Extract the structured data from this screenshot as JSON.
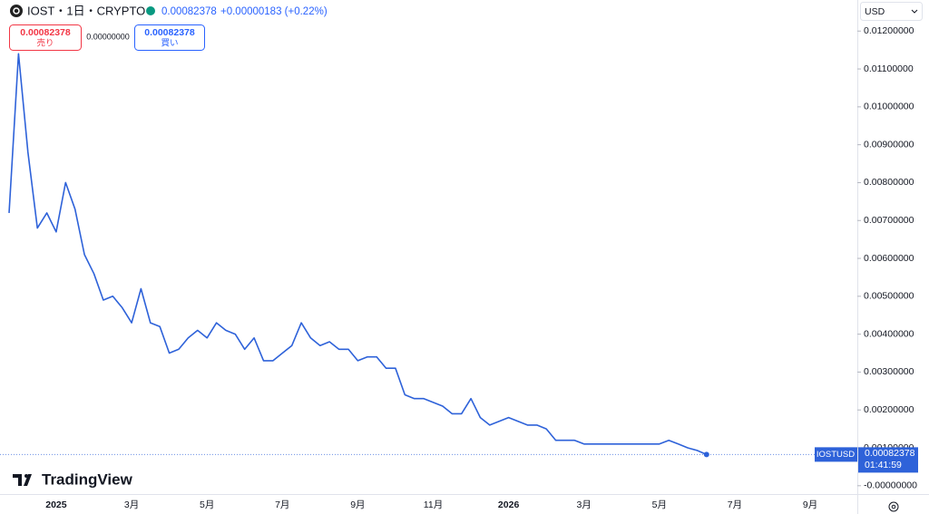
{
  "chart_data": {
    "type": "line",
    "symbol": "IOST・1日・CRYPTO",
    "last": "0.00082378",
    "change": "+0.00000183 (+0.22%)",
    "sell": {
      "price": "0.00082378",
      "label": "売り"
    },
    "spread": "0.00000000",
    "buy": {
      "price": "0.00082378",
      "label": "買い"
    },
    "currency": "USD",
    "brand": "TradingView",
    "price_tag": {
      "ticker": "IOSTUSD",
      "price": "0.00082378",
      "countdown": "01:41:59"
    },
    "categories": [
      null,
      null,
      null,
      null,
      null,
      "2025",
      null,
      null,
      null,
      null,
      null,
      null,
      null,
      "3月",
      null,
      null,
      null,
      null,
      null,
      null,
      null,
      "5月",
      null,
      null,
      null,
      null,
      null,
      null,
      null,
      "7月",
      null,
      null,
      null,
      null,
      null,
      null,
      null,
      "9月",
      null,
      null,
      null,
      null,
      null,
      null,
      null,
      "11月",
      null,
      null,
      null,
      null,
      null,
      null,
      null,
      "2026",
      null,
      null,
      null,
      null,
      null,
      null,
      null,
      "3月",
      null,
      null,
      null,
      null,
      null,
      null,
      null,
      "5月",
      null,
      null,
      null,
      null,
      null,
      null,
      null,
      "7月",
      null,
      null,
      null,
      null,
      null,
      null,
      null,
      "9月",
      null,
      null,
      null,
      null,
      null
    ],
    "series": [
      {
        "name": "IOSTUSD",
        "color": "#2e62d9",
        "values": [
          0.0072,
          0.0114,
          0.0088,
          0.0068,
          0.0072,
          0.0067,
          0.008,
          0.0073,
          0.0061,
          0.0056,
          0.0049,
          0.005,
          0.0047,
          0.0043,
          0.0052,
          0.0043,
          0.0042,
          0.0035,
          0.0036,
          0.0039,
          0.0041,
          0.0039,
          0.0043,
          0.0041,
          0.004,
          0.0036,
          0.0039,
          0.0033,
          0.0033,
          0.0035,
          0.0037,
          0.0043,
          0.0039,
          0.0037,
          0.0038,
          0.0036,
          0.0036,
          0.0033,
          0.0034,
          0.0034,
          0.0031,
          0.0031,
          0.0024,
          0.0023,
          0.0023,
          0.0022,
          0.0021,
          0.0019,
          0.0019,
          0.0023,
          0.0018,
          0.0016,
          0.0017,
          0.0018,
          0.0017,
          0.0016,
          0.0016,
          0.0015,
          0.0012,
          0.0012,
          0.0012,
          0.0011,
          0.0011,
          0.0011,
          0.0011,
          0.0011,
          0.0011,
          0.0011,
          0.0011,
          0.0011,
          0.0012,
          0.0011,
          0.001,
          0.00093,
          0.00082378,
          null,
          null,
          null,
          null,
          null,
          null,
          null,
          null,
          null,
          null,
          null,
          null,
          null,
          null,
          null,
          null
        ]
      }
    ],
    "ylim": [
      -0.00022,
      0.01282
    ],
    "yticks": [
      {
        "value": 0,
        "label": "-0.00000000"
      },
      {
        "value": 0.001,
        "label": "0.00100000"
      },
      {
        "value": 0.002,
        "label": "0.00200000"
      },
      {
        "value": 0.003,
        "label": "0.00300000"
      },
      {
        "value": 0.004,
        "label": "0.00400000"
      },
      {
        "value": 0.005,
        "label": "0.00500000"
      },
      {
        "value": 0.006,
        "label": "0.00600000"
      },
      {
        "value": 0.007,
        "label": "0.00700000"
      },
      {
        "value": 0.008,
        "label": "0.00800000"
      },
      {
        "value": 0.009,
        "label": "0.00900000"
      },
      {
        "value": 0.01,
        "label": "0.01000000"
      },
      {
        "value": 0.011,
        "label": "0.01100000"
      },
      {
        "value": 0.012,
        "label": "0.01200000"
      }
    ],
    "grid": false
  }
}
